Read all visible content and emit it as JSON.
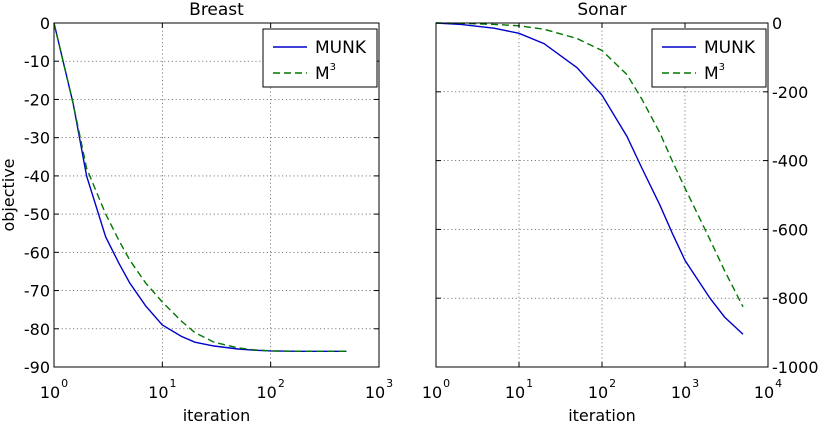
{
  "chart_data": [
    {
      "type": "line",
      "title": "Breast",
      "xlabel": "iteration",
      "ylabel": "objective",
      "xscale": "log",
      "xlim": [
        1,
        1000
      ],
      "ylim": [
        -90,
        0
      ],
      "xticks": [
        1,
        10,
        100,
        1000
      ],
      "xtick_base": "10",
      "xtick_exponents": [
        "0",
        "1",
        "2",
        "3"
      ],
      "yticks": [
        0,
        -10,
        -20,
        -30,
        -40,
        -50,
        -60,
        -70,
        -80,
        -90
      ],
      "ytick_labels": [
        "0",
        "-10",
        "-20",
        "-30",
        "-40",
        "-50",
        "-60",
        "-70",
        "-80",
        "-90"
      ],
      "yaxis_side": "left",
      "grid": true,
      "legend": "top-right",
      "series": [
        {
          "name": "MUNK",
          "color": "#0000cc",
          "style": "solid",
          "x": [
            1,
            1.5,
            2,
            3,
            4,
            5,
            7,
            10,
            15,
            20,
            30,
            50,
            70,
            100,
            200,
            500
          ],
          "y": [
            0,
            -21,
            -40,
            -56,
            -63,
            -68,
            -74,
            -79,
            -82,
            -83.5,
            -84.5,
            -85.3,
            -85.6,
            -85.8,
            -85.9,
            -85.9
          ]
        },
        {
          "name": "M3",
          "name_base": "M",
          "name_sup": "3",
          "color": "#007700",
          "style": "dashed",
          "x": [
            1,
            1.5,
            2,
            3,
            4,
            5,
            7,
            10,
            15,
            20,
            30,
            50,
            70,
            100,
            200,
            500
          ],
          "y": [
            0,
            -21,
            -38,
            -50,
            -57,
            -62,
            -68,
            -73,
            -78,
            -81,
            -83.5,
            -85,
            -85.5,
            -85.8,
            -85.9,
            -85.9
          ]
        }
      ]
    },
    {
      "type": "line",
      "title": "Sonar",
      "xlabel": "iteration",
      "ylabel": "",
      "xscale": "log",
      "xlim": [
        1,
        10000
      ],
      "ylim": [
        -1000,
        0
      ],
      "xticks": [
        1,
        10,
        100,
        1000,
        10000
      ],
      "xtick_base": "10",
      "xtick_exponents": [
        "0",
        "1",
        "2",
        "3",
        "4"
      ],
      "yticks": [
        0,
        -200,
        -400,
        -600,
        -800,
        -1000
      ],
      "ytick_labels": [
        "0",
        "-200",
        "-400",
        "-600",
        "-800",
        "-1000"
      ],
      "yaxis_side": "right",
      "grid": true,
      "legend": "top-right",
      "series": [
        {
          "name": "MUNK",
          "color": "#0000cc",
          "style": "solid",
          "x": [
            1,
            2,
            5,
            10,
            20,
            50,
            100,
            200,
            300,
            500,
            700,
            1000,
            2000,
            3000,
            5000
          ],
          "y": [
            0,
            -4,
            -15,
            -30,
            -60,
            -130,
            -210,
            -330,
            -420,
            -530,
            -610,
            -690,
            -800,
            -855,
            -905
          ]
        },
        {
          "name": "M3",
          "name_base": "M",
          "name_sup": "3",
          "color": "#007700",
          "style": "dashed",
          "x": [
            1,
            2,
            5,
            10,
            20,
            50,
            100,
            200,
            300,
            500,
            700,
            1000,
            2000,
            3000,
            5000
          ],
          "y": [
            0,
            -1,
            -4,
            -8,
            -18,
            -45,
            -80,
            -150,
            -220,
            -320,
            -400,
            -480,
            -630,
            -720,
            -825
          ]
        }
      ]
    }
  ]
}
